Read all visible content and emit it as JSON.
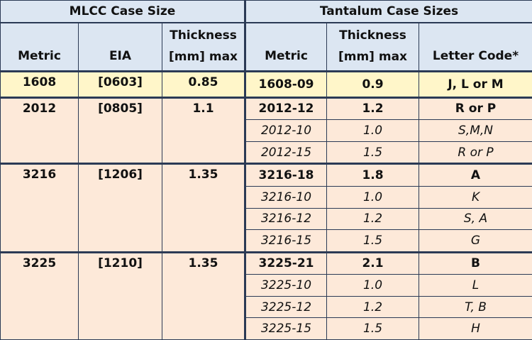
{
  "header": {
    "groups": [
      "MLCC Case Size",
      "Tantalum Case Sizes"
    ],
    "columns": [
      [
        "Metric"
      ],
      [
        "EIA"
      ],
      [
        "Thickness",
        "[mm] max"
      ],
      [
        "Metric"
      ],
      [
        "Thickness",
        "[mm] max"
      ],
      [
        "Letter Code*"
      ]
    ]
  },
  "table": {
    "groups": [
      {
        "mlcc": [
          "1608",
          "[0603]",
          "0.85"
        ],
        "tantalum": [
          [
            "1608-09",
            "0.9",
            "J, L or M"
          ]
        ]
      },
      {
        "mlcc": [
          "2012",
          "[0805]",
          "1.1"
        ],
        "tantalum": [
          [
            "2012-12",
            "1.2",
            "R or P"
          ],
          [
            "2012-10",
            "1.0",
            "S,M,N"
          ],
          [
            "2012-15",
            "1.5",
            "R or P"
          ]
        ]
      },
      {
        "mlcc": [
          "3216",
          "[1206]",
          "1.35"
        ],
        "tantalum": [
          [
            "3216-18",
            "1.8",
            "A"
          ],
          [
            "3216-10",
            "1.0",
            "K"
          ],
          [
            "3216-12",
            "1.2",
            "S, A"
          ],
          [
            "3216-15",
            "1.5",
            "G"
          ]
        ]
      },
      {
        "mlcc": [
          "3225",
          "[1210]",
          "1.35"
        ],
        "tantalum": [
          [
            "3225-21",
            "2.1",
            "B"
          ],
          [
            "3225-10",
            "1.0",
            "L"
          ],
          [
            "3225-12",
            "1.2",
            "T, B"
          ],
          [
            "3225-15",
            "1.5",
            "H"
          ]
        ]
      }
    ]
  }
}
